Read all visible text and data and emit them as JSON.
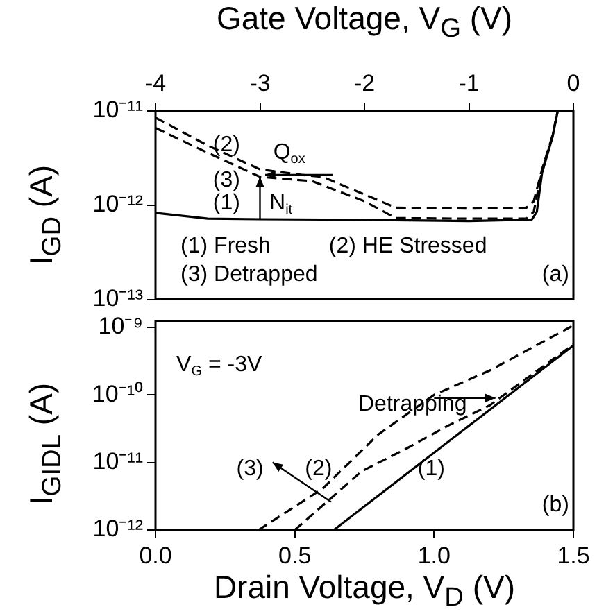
{
  "chart_data": [
    {
      "type": "line",
      "xlabel": "Gate Voltage, V$_{G}$ (V)",
      "ylabel": "I$_{GD}$ (A)",
      "xlim": [
        -4,
        0
      ],
      "xticks": [
        -4,
        -3,
        -2,
        -1,
        0
      ],
      "ylim": [
        1e-13,
        1e-11
      ],
      "yticks": [
        {
          "value": 1e-13,
          "label": "10⁻¹³"
        },
        {
          "value": 1e-12,
          "label": "10⁻¹²"
        },
        {
          "value": 1e-11,
          "label": "10⁻¹¹"
        }
      ],
      "log": "y",
      "grid": false,
      "legend": false,
      "marker": "none",
      "series": [
        {
          "color": "#000000",
          "line_style": "solid",
          "x": [
            -4,
            -3.5,
            -3,
            -2,
            -1,
            -0.5,
            -0.4,
            -0.35,
            -0.3,
            -0.2,
            -0.15
          ],
          "values": [
            8.3e-13,
            7.2e-13,
            7.1e-13,
            7e-13,
            6.8e-13,
            7e-13,
            7e-13,
            8.5e-13,
            2.2e-12,
            5.3e-12,
            1e-11
          ]
        },
        {
          "color": "#000000",
          "line_style": "dashed",
          "x": [
            -4,
            -3.5,
            -3,
            -2.6,
            -2.4,
            -2,
            -1.7,
            -1,
            -0.45,
            -0.38,
            -0.3,
            -0.2,
            -0.15
          ],
          "values": [
            8.5e-12,
            4.3e-12,
            2.4e-12,
            2.1e-12,
            2e-12,
            1.3e-12,
            9.4e-13,
            9.2e-13,
            9.4e-13,
            1.1e-12,
            2.4e-12,
            5.5e-12,
            1e-11
          ]
        },
        {
          "color": "#000000",
          "line_style": "dashed",
          "x": [
            -4,
            -3.5,
            -3,
            -2.5,
            -2,
            -1.7,
            -1,
            -0.45,
            -0.38,
            -0.3,
            -0.2,
            -0.15
          ],
          "values": [
            6.6e-12,
            3.6e-12,
            2e-12,
            1.8e-12,
            1.1e-12,
            7.3e-13,
            7.2e-13,
            7.2e-13,
            8.5e-13,
            2.3e-12,
            5.4e-12,
            1e-11
          ]
        }
      ],
      "annotations": [
        "(1)",
        "(2)",
        "(3)",
        "Q$_{ox}$",
        "N$_{it}$",
        "(1) Fresh",
        "(2) HE Stressed",
        "(3) Detrapped",
        "(a)"
      ]
    },
    {
      "type": "line",
      "xlabel": "Drain Voltage, V$_{D}$ (V)",
      "ylabel": "I$_{GIDL}$ (A)",
      "xlim": [
        0,
        1.5
      ],
      "xticks": [
        {
          "value": 0,
          "label": "0.0"
        },
        0.5,
        {
          "value": 1,
          "label": "1.0"
        },
        1.5
      ],
      "ylim": [
        1e-12,
        1.25e-09
      ],
      "yticks": [
        {
          "value": 1e-12,
          "label": "10⁻¹²"
        },
        {
          "value": 1e-11,
          "label": "10⁻¹¹"
        },
        {
          "value": 1e-10,
          "label": "10⁻¹⁰"
        },
        {
          "value": 1e-09,
          "label": "10⁻⁹"
        }
      ],
      "log": "y",
      "grid": false,
      "legend": false,
      "marker": "none",
      "series": [
        {
          "color": "#000000",
          "line_style": "solid",
          "x": [
            0.64,
            0.9,
            1.1,
            1.3,
            1.5
          ],
          "values": [
            1e-12,
            6.7e-12,
            2.9e-11,
            1.25e-10,
            5.4e-10
          ]
        },
        {
          "color": "#000000",
          "line_style": "dashed",
          "x": [
            0.37,
            0.6,
            0.8,
            1.0,
            1.2,
            1.5
          ],
          "values": [
            1e-12,
            4.1e-12,
            2.6e-11,
            1e-10,
            2.3e-10,
            1.07e-09
          ]
        },
        {
          "color": "#000000",
          "line_style": "dashed",
          "x": [
            0.5,
            0.74,
            0.9,
            1.05,
            1.2,
            1.5
          ],
          "values": [
            1e-12,
            7.4e-12,
            1.6e-11,
            3.5e-11,
            7e-11,
            5.6e-10
          ]
        }
      ],
      "annotations": [
        "(3)",
        "(2)",
        "(1)",
        "V$_{G}$ = -3V",
        "Detrapping",
        "(b)"
      ]
    }
  ]
}
